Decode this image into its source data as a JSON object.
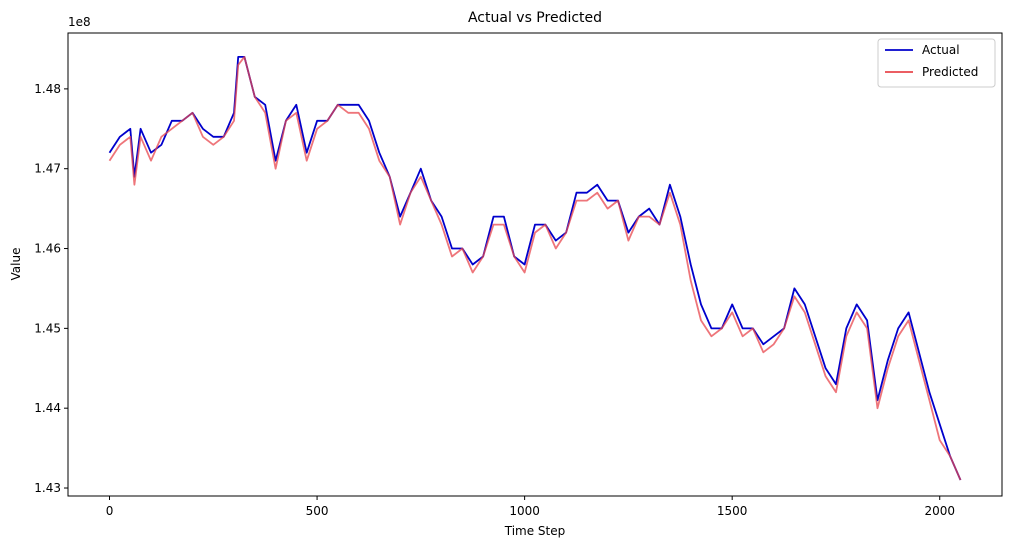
{
  "chart_data": {
    "type": "line",
    "title": "Actual vs Predicted",
    "xlabel": "Time Step",
    "ylabel": "Value",
    "y_offset_text": "1e8",
    "xlim": [
      -100,
      2150
    ],
    "ylim": [
      142.9,
      148.7
    ],
    "x_ticks": [
      0,
      500,
      1000,
      1500,
      2000
    ],
    "y_ticks": [
      143,
      144,
      145,
      146,
      147,
      148
    ],
    "y_tick_labels": [
      "1.43",
      "1.44",
      "1.45",
      "1.46",
      "1.47",
      "1.48"
    ],
    "grid": false,
    "legend_position": "top-right",
    "x": [
      0,
      25,
      50,
      60,
      75,
      100,
      125,
      150,
      175,
      200,
      225,
      250,
      275,
      300,
      310,
      325,
      350,
      375,
      400,
      425,
      450,
      475,
      500,
      525,
      550,
      575,
      600,
      625,
      650,
      675,
      700,
      725,
      750,
      775,
      800,
      825,
      850,
      875,
      900,
      925,
      950,
      975,
      1000,
      1025,
      1050,
      1075,
      1100,
      1125,
      1150,
      1175,
      1200,
      1225,
      1250,
      1275,
      1300,
      1325,
      1350,
      1375,
      1400,
      1425,
      1450,
      1475,
      1500,
      1525,
      1550,
      1575,
      1600,
      1625,
      1650,
      1675,
      1700,
      1725,
      1750,
      1775,
      1800,
      1825,
      1850,
      1875,
      1900,
      1925,
      1950,
      1975,
      2000,
      2025,
      2050
    ],
    "series": [
      {
        "name": "Actual",
        "color": "#0000cc",
        "values": [
          147.2,
          147.4,
          147.5,
          146.9,
          147.5,
          147.2,
          147.3,
          147.6,
          147.6,
          147.7,
          147.5,
          147.4,
          147.4,
          147.7,
          148.4,
          148.4,
          147.9,
          147.8,
          147.1,
          147.6,
          147.8,
          147.2,
          147.6,
          147.6,
          147.8,
          147.8,
          147.8,
          147.6,
          147.2,
          146.9,
          146.4,
          146.7,
          147.0,
          146.6,
          146.4,
          146.0,
          146.0,
          145.8,
          145.9,
          146.4,
          146.4,
          145.9,
          145.8,
          146.3,
          146.3,
          146.1,
          146.2,
          146.7,
          146.7,
          146.8,
          146.6,
          146.6,
          146.2,
          146.4,
          146.5,
          146.3,
          146.8,
          146.4,
          145.8,
          145.3,
          145.0,
          145.0,
          145.3,
          145.0,
          145.0,
          144.8,
          144.9,
          145.0,
          145.5,
          145.3,
          144.9,
          144.5,
          144.3,
          145.0,
          145.3,
          145.1,
          144.1,
          144.6,
          145.0,
          145.2,
          144.7,
          144.2,
          143.8,
          143.4,
          143.1
        ]
      },
      {
        "name": "Predicted",
        "color": "#e8474d",
        "values": [
          147.1,
          147.3,
          147.4,
          146.8,
          147.4,
          147.1,
          147.4,
          147.5,
          147.6,
          147.7,
          147.4,
          147.3,
          147.4,
          147.6,
          148.3,
          148.4,
          147.9,
          147.7,
          147.0,
          147.6,
          147.7,
          147.1,
          147.5,
          147.6,
          147.8,
          147.7,
          147.7,
          147.5,
          147.1,
          146.9,
          146.3,
          146.7,
          146.9,
          146.6,
          146.3,
          145.9,
          146.0,
          145.7,
          145.9,
          146.3,
          146.3,
          145.9,
          145.7,
          146.2,
          146.3,
          146.0,
          146.2,
          146.6,
          146.6,
          146.7,
          146.5,
          146.6,
          146.1,
          146.4,
          146.4,
          146.3,
          146.7,
          146.3,
          145.6,
          145.1,
          144.9,
          145.0,
          145.2,
          144.9,
          145.0,
          144.7,
          144.8,
          145.0,
          145.4,
          145.2,
          144.8,
          144.4,
          144.2,
          144.9,
          145.2,
          145.0,
          144.0,
          144.5,
          144.9,
          145.1,
          144.6,
          144.1,
          143.6,
          143.4,
          143.1
        ]
      }
    ]
  }
}
